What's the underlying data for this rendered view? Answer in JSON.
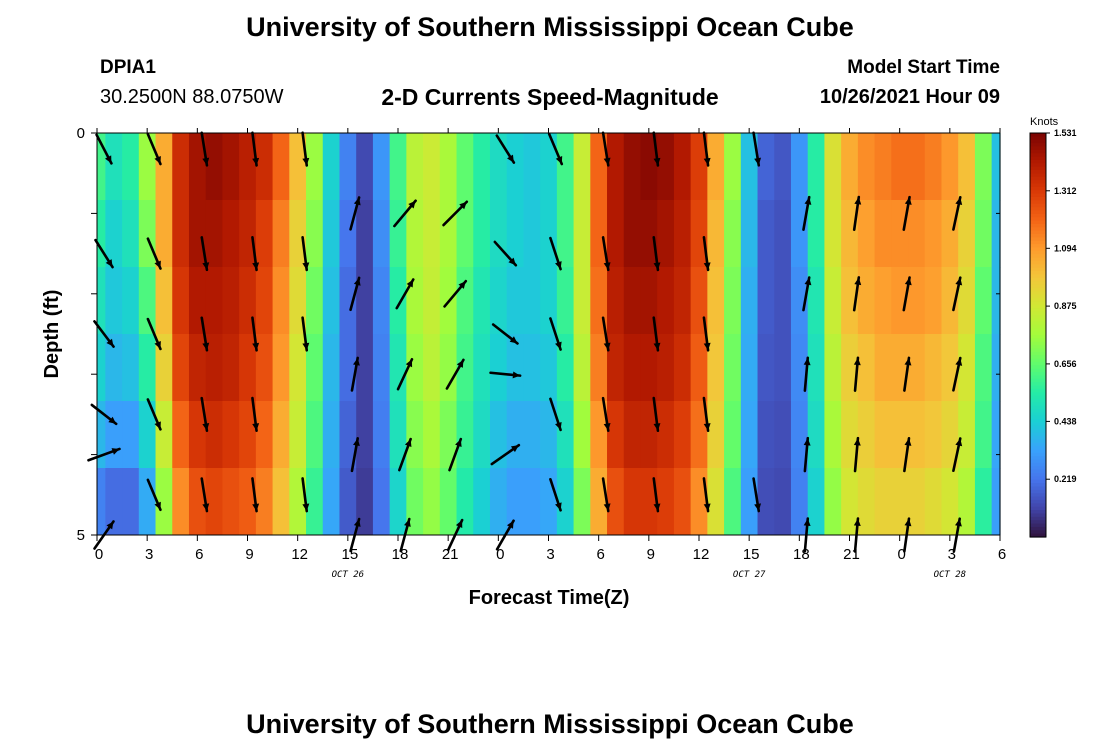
{
  "header": {
    "title": "University of Southern Mississippi Ocean Cube",
    "station": "DPIA1",
    "coords": "30.2500N  88.0750W",
    "subtitle": "2-D Currents Speed-Magnitude",
    "model_label": "Model Start Time",
    "model_time": "10/26/2021 Hour 09"
  },
  "footer": {
    "title": "University of Southern Mississippi Ocean Cube"
  },
  "chart_data": {
    "type": "heatmap",
    "xlabel": "Forecast Time(Z)",
    "ylabel": "Depth (ft)",
    "x_tick_labels": [
      "0",
      "3",
      "6",
      "9",
      "12",
      "15",
      "18",
      "21",
      "0",
      "3",
      "6",
      "9",
      "12",
      "15",
      "18",
      "21",
      "0",
      "3",
      "6"
    ],
    "date_labels": [
      {
        "text": "OCT 26",
        "at_tick": 5
      },
      {
        "text": "OCT 27",
        "at_tick": 13
      },
      {
        "text": "OCT 28",
        "at_tick": 17
      }
    ],
    "y_tick_labels": [
      "0",
      "5"
    ],
    "ylim": [
      0,
      5
    ],
    "colorbar": {
      "label": "Knots",
      "ticks": [
        1.531,
        1.312,
        1.094,
        0.875,
        0.656,
        0.438,
        0.219
      ],
      "range": [
        0,
        1.531
      ]
    },
    "colormap": [
      "#30123b",
      "#4145ab",
      "#4675ed",
      "#39a2fc",
      "#1bcfd4",
      "#24eca6",
      "#61fc6c",
      "#a4fc3b",
      "#d1e834",
      "#f3c63a",
      "#fe9b2d",
      "#f36315",
      "#d93806",
      "#b11901",
      "#7a0402"
    ],
    "rows": 6,
    "hours": [
      0,
      1,
      2,
      3,
      4,
      5,
      6,
      7,
      8,
      9,
      10,
      11,
      12,
      13,
      14,
      15,
      16,
      17,
      18,
      19,
      20,
      21,
      22,
      23,
      24,
      25,
      26,
      27,
      28,
      29,
      30,
      31,
      32,
      33,
      34,
      35,
      36,
      37,
      38,
      39,
      40,
      41,
      42,
      43,
      44,
      45,
      46,
      47,
      48,
      49,
      50,
      51,
      52,
      53,
      54
    ],
    "speed_rows": [
      [
        0.6,
        0.5,
        0.55,
        0.75,
        1.05,
        1.35,
        1.45,
        1.48,
        1.45,
        1.4,
        1.35,
        1.2,
        1.0,
        0.75,
        0.45,
        0.25,
        0.12,
        0.3,
        0.6,
        0.82,
        0.86,
        0.78,
        0.65,
        0.55,
        0.48,
        0.44,
        0.42,
        0.45,
        0.6,
        0.85,
        1.2,
        1.42,
        1.48,
        1.5,
        1.48,
        1.42,
        1.3,
        1.05,
        0.75,
        0.4,
        0.18,
        0.15,
        0.3,
        0.55,
        0.9,
        1.05,
        1.12,
        1.15,
        1.18,
        1.18,
        1.15,
        1.1,
        1.0,
        0.7,
        0.4
      ],
      [
        0.55,
        0.45,
        0.5,
        0.7,
        1.05,
        1.35,
        1.45,
        1.45,
        1.42,
        1.38,
        1.3,
        1.15,
        0.95,
        0.72,
        0.42,
        0.22,
        0.1,
        0.28,
        0.58,
        0.8,
        0.85,
        0.78,
        0.65,
        0.55,
        0.48,
        0.44,
        0.42,
        0.45,
        0.6,
        0.85,
        1.2,
        1.42,
        1.48,
        1.48,
        1.45,
        1.4,
        1.28,
        1.02,
        0.72,
        0.38,
        0.16,
        0.14,
        0.3,
        0.55,
        0.88,
        1.02,
        1.08,
        1.12,
        1.12,
        1.12,
        1.1,
        1.05,
        0.95,
        0.68,
        0.38
      ],
      [
        0.5,
        0.42,
        0.45,
        0.62,
        1.0,
        1.32,
        1.42,
        1.42,
        1.4,
        1.35,
        1.28,
        1.12,
        0.92,
        0.68,
        0.4,
        0.2,
        0.1,
        0.26,
        0.55,
        0.78,
        0.84,
        0.76,
        0.62,
        0.52,
        0.46,
        0.42,
        0.42,
        0.45,
        0.58,
        0.85,
        1.18,
        1.4,
        1.45,
        1.45,
        1.42,
        1.38,
        1.25,
        1.0,
        0.7,
        0.36,
        0.16,
        0.14,
        0.28,
        0.52,
        0.85,
        1.0,
        1.05,
        1.08,
        1.1,
        1.1,
        1.08,
        1.02,
        0.92,
        0.65,
        0.38
      ],
      [
        0.45,
        0.38,
        0.4,
        0.55,
        0.95,
        1.28,
        1.38,
        1.4,
        1.38,
        1.32,
        1.25,
        1.1,
        0.88,
        0.65,
        0.38,
        0.2,
        0.1,
        0.25,
        0.52,
        0.75,
        0.82,
        0.74,
        0.6,
        0.5,
        0.44,
        0.4,
        0.4,
        0.42,
        0.55,
        0.82,
        1.15,
        1.38,
        1.42,
        1.42,
        1.4,
        1.35,
        1.22,
        0.98,
        0.68,
        0.35,
        0.15,
        0.14,
        0.27,
        0.5,
        0.82,
        0.96,
        1.0,
        1.05,
        1.05,
        1.05,
        1.02,
        0.98,
        0.88,
        0.62,
        0.36
      ],
      [
        0.38,
        0.32,
        0.32,
        0.45,
        0.85,
        1.2,
        1.32,
        1.35,
        1.32,
        1.28,
        1.2,
        1.05,
        0.85,
        0.62,
        0.36,
        0.18,
        0.1,
        0.24,
        0.5,
        0.72,
        0.78,
        0.7,
        0.58,
        0.48,
        0.4,
        0.36,
        0.36,
        0.38,
        0.5,
        0.76,
        1.1,
        1.32,
        1.38,
        1.38,
        1.35,
        1.3,
        1.18,
        0.95,
        0.66,
        0.34,
        0.14,
        0.13,
        0.26,
        0.48,
        0.78,
        0.92,
        0.96,
        1.0,
        1.0,
        1.0,
        0.98,
        0.94,
        0.85,
        0.6,
        0.34
      ],
      [
        0.25,
        0.2,
        0.2,
        0.35,
        0.75,
        1.12,
        1.25,
        1.28,
        1.25,
        1.22,
        1.15,
        1.0,
        0.8,
        0.58,
        0.34,
        0.16,
        0.09,
        0.22,
        0.46,
        0.68,
        0.74,
        0.66,
        0.54,
        0.44,
        0.36,
        0.32,
        0.32,
        0.34,
        0.45,
        0.7,
        1.05,
        1.25,
        1.32,
        1.32,
        1.3,
        1.25,
        1.12,
        0.9,
        0.62,
        0.32,
        0.13,
        0.12,
        0.25,
        0.45,
        0.74,
        0.88,
        0.92,
        0.95,
        0.95,
        0.95,
        0.92,
        0.88,
        0.8,
        0.56,
        0.32
      ]
    ],
    "arrow_hours": [
      0,
      3,
      6,
      9,
      12,
      15,
      18,
      21,
      24,
      27,
      30,
      33,
      36,
      39,
      42,
      45,
      48,
      51
    ],
    "arrow_depths": [
      0.2,
      1.0,
      1.5,
      2.0,
      2.5,
      3.0,
      3.5,
      4.0,
      4.5,
      5.0
    ],
    "arrow_angles": [
      [
        -30,
        -25,
        -10,
        -8,
        -8,
        null,
        null,
        null,
        -35,
        -25,
        -10,
        -8,
        -8,
        -10,
        null,
        null,
        null,
        null
      ],
      [
        null,
        null,
        null,
        null,
        null,
        15,
        40,
        45,
        null,
        null,
        null,
        null,
        null,
        null,
        10,
        8,
        10,
        12
      ],
      [
        -35,
        -25,
        -10,
        -8,
        -8,
        null,
        null,
        null,
        -45,
        -20,
        -10,
        -8,
        -8,
        null,
        null,
        null,
        null,
        null
      ],
      [
        null,
        null,
        null,
        null,
        null,
        15,
        30,
        40,
        null,
        null,
        null,
        null,
        null,
        null,
        10,
        8,
        10,
        12
      ],
      [
        -40,
        -25,
        -10,
        -8,
        -8,
        null,
        null,
        null,
        -55,
        -20,
        -10,
        -8,
        -8,
        null,
        null,
        null,
        null,
        null
      ],
      [
        null,
        null,
        null,
        null,
        null,
        10,
        25,
        30,
        -85,
        null,
        null,
        null,
        null,
        null,
        5,
        5,
        8,
        12
      ],
      [
        -55,
        -25,
        -10,
        -8,
        null,
        null,
        null,
        null,
        null,
        -20,
        -10,
        -8,
        -8,
        null,
        null,
        null,
        null,
        null
      ],
      [
        70,
        null,
        null,
        null,
        null,
        10,
        20,
        20,
        55,
        null,
        null,
        null,
        null,
        null,
        5,
        5,
        8,
        12
      ],
      [
        null,
        -25,
        -10,
        -8,
        -8,
        null,
        null,
        null,
        null,
        -20,
        -10,
        -8,
        -8,
        -10,
        null,
        null,
        null,
        null
      ],
      [
        35,
        null,
        null,
        null,
        null,
        15,
        15,
        25,
        30,
        null,
        null,
        null,
        null,
        null,
        5,
        5,
        8,
        10
      ]
    ]
  }
}
